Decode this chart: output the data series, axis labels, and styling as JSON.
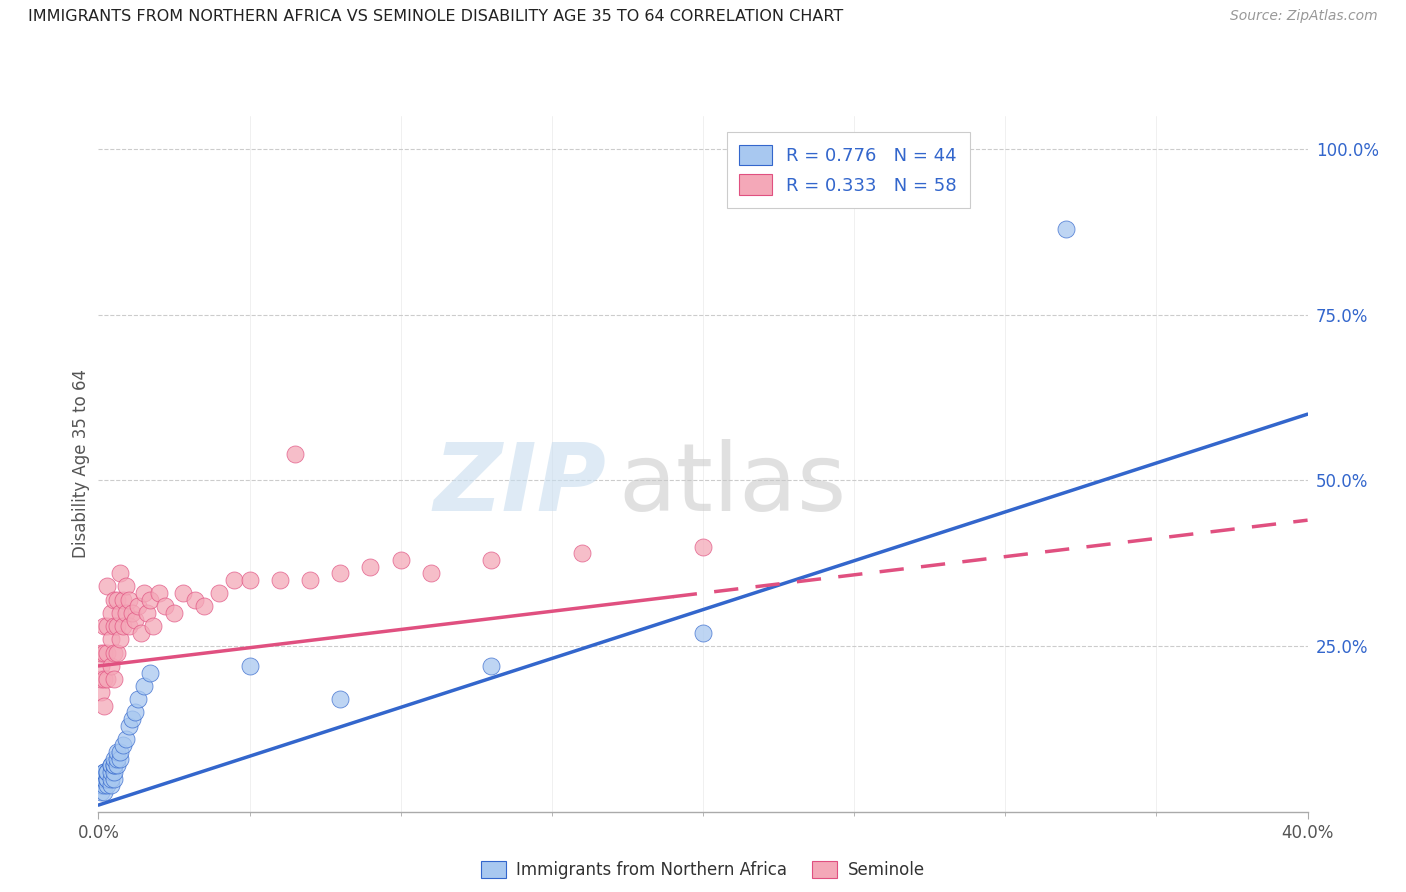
{
  "title": "IMMIGRANTS FROM NORTHERN AFRICA VS SEMINOLE DISABILITY AGE 35 TO 64 CORRELATION CHART",
  "source": "Source: ZipAtlas.com",
  "ylabel": "Disability Age 35 to 64",
  "ylabel_right_ticks": [
    "100.0%",
    "75.0%",
    "50.0%",
    "25.0%"
  ],
  "ylabel_right_vals": [
    1.0,
    0.75,
    0.5,
    0.25
  ],
  "blue_R": 0.776,
  "blue_N": 44,
  "pink_R": 0.333,
  "pink_N": 58,
  "blue_color": "#A8C8F0",
  "pink_color": "#F4A8B8",
  "blue_line_color": "#3366CC",
  "pink_line_color": "#E05080",
  "legend_label_blue": "Immigrants from Northern Africa",
  "legend_label_pink": "Seminole",
  "blue_scatter_x": [
    0.001,
    0.001,
    0.001,
    0.001,
    0.001,
    0.002,
    0.002,
    0.002,
    0.002,
    0.002,
    0.002,
    0.003,
    0.003,
    0.003,
    0.003,
    0.003,
    0.004,
    0.004,
    0.004,
    0.004,
    0.004,
    0.005,
    0.005,
    0.005,
    0.005,
    0.005,
    0.006,
    0.006,
    0.006,
    0.007,
    0.007,
    0.008,
    0.009,
    0.01,
    0.011,
    0.012,
    0.013,
    0.015,
    0.017,
    0.05,
    0.08,
    0.13,
    0.2,
    0.32
  ],
  "blue_scatter_y": [
    0.03,
    0.04,
    0.04,
    0.05,
    0.05,
    0.03,
    0.04,
    0.05,
    0.05,
    0.06,
    0.06,
    0.04,
    0.05,
    0.05,
    0.06,
    0.06,
    0.04,
    0.05,
    0.06,
    0.07,
    0.07,
    0.05,
    0.06,
    0.07,
    0.07,
    0.08,
    0.07,
    0.08,
    0.09,
    0.08,
    0.09,
    0.1,
    0.11,
    0.13,
    0.14,
    0.15,
    0.17,
    0.19,
    0.21,
    0.22,
    0.17,
    0.22,
    0.27,
    0.88
  ],
  "pink_scatter_x": [
    0.001,
    0.001,
    0.001,
    0.001,
    0.002,
    0.002,
    0.002,
    0.002,
    0.003,
    0.003,
    0.003,
    0.003,
    0.004,
    0.004,
    0.004,
    0.005,
    0.005,
    0.005,
    0.005,
    0.006,
    0.006,
    0.006,
    0.007,
    0.007,
    0.007,
    0.008,
    0.008,
    0.009,
    0.009,
    0.01,
    0.01,
    0.011,
    0.012,
    0.013,
    0.014,
    0.015,
    0.016,
    0.017,
    0.018,
    0.02,
    0.022,
    0.025,
    0.028,
    0.032,
    0.035,
    0.04,
    0.045,
    0.05,
    0.06,
    0.065,
    0.07,
    0.08,
    0.09,
    0.1,
    0.11,
    0.13,
    0.16,
    0.2
  ],
  "pink_scatter_y": [
    0.18,
    0.2,
    0.22,
    0.24,
    0.16,
    0.2,
    0.24,
    0.28,
    0.2,
    0.24,
    0.28,
    0.34,
    0.22,
    0.26,
    0.3,
    0.2,
    0.24,
    0.28,
    0.32,
    0.24,
    0.28,
    0.32,
    0.26,
    0.3,
    0.36,
    0.28,
    0.32,
    0.3,
    0.34,
    0.28,
    0.32,
    0.3,
    0.29,
    0.31,
    0.27,
    0.33,
    0.3,
    0.32,
    0.28,
    0.33,
    0.31,
    0.3,
    0.33,
    0.32,
    0.31,
    0.33,
    0.35,
    0.35,
    0.35,
    0.54,
    0.35,
    0.36,
    0.37,
    0.38,
    0.36,
    0.38,
    0.39,
    0.4
  ],
  "xlim": [
    0.0,
    0.4
  ],
  "ylim": [
    0.0,
    1.05
  ],
  "blue_trend_x0": 0.0,
  "blue_trend_x1": 0.4,
  "blue_trend_y0": 0.01,
  "blue_trend_y1": 0.6,
  "pink_trend_x0": 0.0,
  "pink_trend_x1": 0.4,
  "pink_trend_y0": 0.22,
  "pink_trend_y1": 0.44,
  "pink_dash_transition": 0.19,
  "watermark_zip_color": "#C8DDEF",
  "watermark_atlas_color": "#C8C8C8",
  "grid_color": "#CCCCCC",
  "spine_color": "#AAAAAA"
}
